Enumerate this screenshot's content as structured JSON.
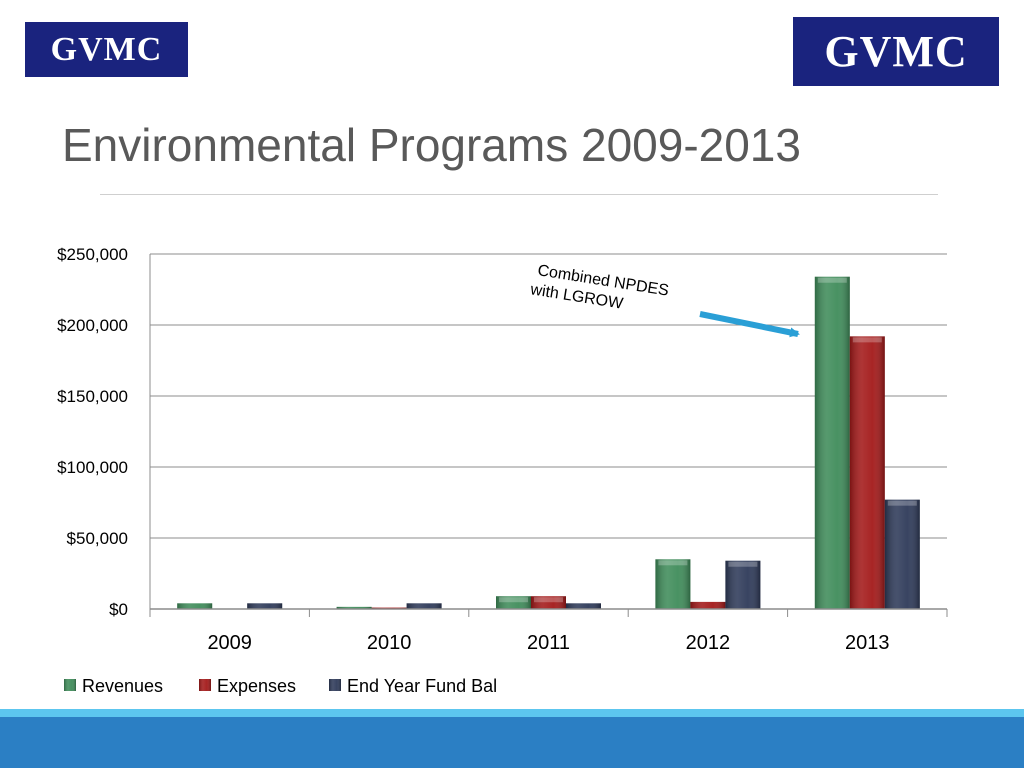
{
  "logos": {
    "left_text": "GVMC",
    "right_text": "GVMC"
  },
  "title": "Environmental Programs 2009-2013",
  "chart_data": {
    "type": "bar",
    "categories": [
      "2009",
      "2010",
      "2011",
      "2012",
      "2013"
    ],
    "series": [
      {
        "name": "Revenues",
        "color": "#3f8c5a",
        "values": [
          4000,
          1500,
          9000,
          35000,
          234000
        ]
      },
      {
        "name": "Expenses",
        "color": "#a31919",
        "values": [
          0,
          1000,
          9000,
          5000,
          192000
        ]
      },
      {
        "name": "End Year Fund Bal",
        "color": "#2e3a59",
        "values": [
          4000,
          4000,
          4000,
          34000,
          77000
        ]
      }
    ],
    "ylim": [
      0,
      250000
    ],
    "yticks": [
      0,
      50000,
      100000,
      150000,
      200000,
      250000
    ],
    "ytick_labels": [
      "$0",
      "$50,000",
      "$100,000",
      "$150,000",
      "$200,000",
      "$250,000"
    ],
    "grid": true,
    "legend_position": "bottom-left",
    "annotation": {
      "lines": [
        "Combined NPDES",
        "with LGROW"
      ],
      "points_to": "2013"
    }
  }
}
